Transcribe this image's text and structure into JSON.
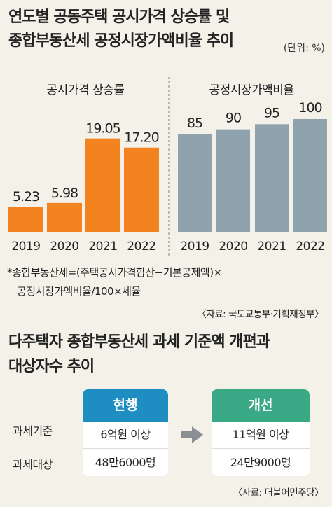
{
  "title_line1": "연도별 공동주택 공시가격 상승률 및",
  "title_line2": "종합부동산세 공정시장가액비율 추이",
  "unit_note": "(단위: %)",
  "colors": {
    "orange": "#f3831f",
    "gray": "#8fa3ae",
    "blue": "#1d8dc2",
    "green": "#3aa986",
    "bg": "#f4f1e8"
  },
  "chart_data": [
    {
      "type": "bar",
      "title": "공시가격 상승률",
      "categories": [
        "2019",
        "2020",
        "2021",
        "2022"
      ],
      "values": [
        5.23,
        5.98,
        19.05,
        17.2
      ],
      "value_labels": [
        "5.23",
        "5.98",
        "19.05",
        "17.20"
      ]
    },
    {
      "type": "bar",
      "title": "공정시장가액비율",
      "categories": [
        "2019",
        "2020",
        "2021",
        "2022"
      ],
      "values": [
        85,
        90,
        95,
        100
      ],
      "value_labels": [
        "85",
        "90",
        "95",
        "100"
      ]
    }
  ],
  "formula_line1": "*종합부동산세=(주택공시가격합산−기본공제액)×",
  "formula_line2": "공정시장가액비율/100×세율",
  "source1": "〈자료: 국토교통부·기획재정부〉",
  "section2_title_line1": "다주택자 종합부동산세 과세 기준액 개편과",
  "section2_title_line2": "대상자수 추이",
  "table": {
    "row_labels": [
      "과세기준",
      "과세대상"
    ],
    "current": {
      "header": "현행",
      "values": [
        "6억원 이상",
        "48만6000명"
      ]
    },
    "revised": {
      "header": "개선",
      "values": [
        "11억원 이상",
        "24만9000명"
      ]
    }
  },
  "source2": "〈자료: 더불어민주당〉"
}
